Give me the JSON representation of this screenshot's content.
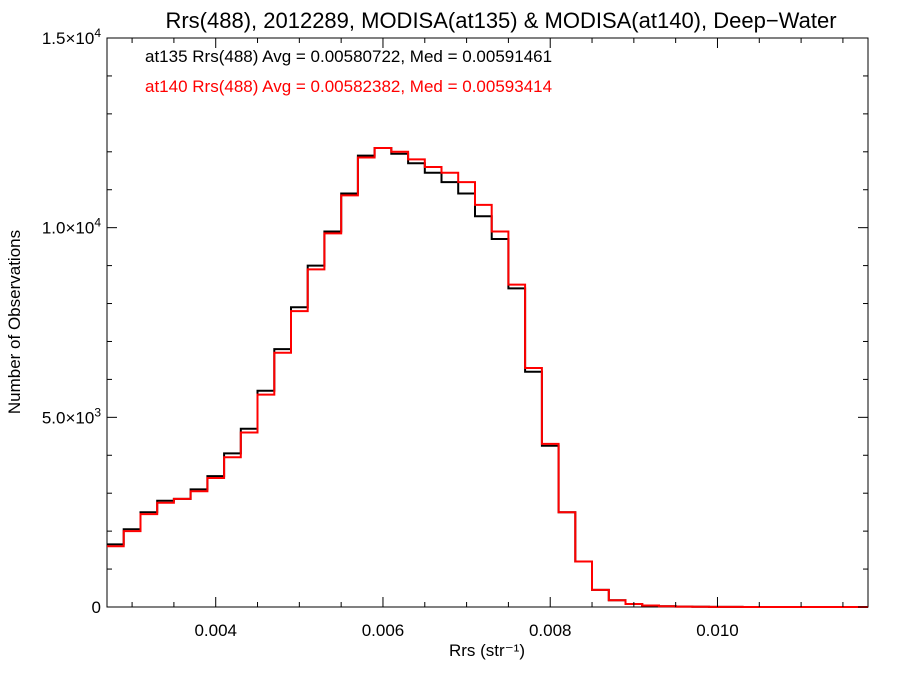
{
  "chart_data": {
    "type": "line",
    "title": "Rrs(488), 2012289, MODISA(at135) & MODISA(at140), Deep−Water",
    "xlabel": "Rrs (str⁻¹)",
    "ylabel": "Number of Observations",
    "xlim": [
      0.0027,
      0.0118
    ],
    "ylim": [
      0,
      15000
    ],
    "x_ticks": [
      0.004,
      0.006,
      0.008,
      0.01
    ],
    "x_tick_labels": [
      "0.004",
      "0.006",
      "0.008",
      "0.010"
    ],
    "y_ticks": [
      0,
      5000,
      10000,
      15000
    ],
    "y_tick_labels": [
      {
        "mantissa": "0",
        "exp": ""
      },
      {
        "mantissa": "5.0×10",
        "exp": "3"
      },
      {
        "mantissa": "1.0×10",
        "exp": "4"
      },
      {
        "mantissa": "1.5×10",
        "exp": "4"
      }
    ],
    "grid": false,
    "annotations": [
      {
        "text": "at135 Rrs(488) Avg = 0.00580722, Med = 0.00591461",
        "color": "#000000"
      },
      {
        "text": "at140 Rrs(488) Avg = 0.00582382, Med = 0.00593414",
        "color": "#ff0000"
      }
    ],
    "series": [
      {
        "color": "#000000",
        "step": true,
        "x": [
          0.0027,
          0.0029,
          0.0031,
          0.0033,
          0.0035,
          0.0037,
          0.0039,
          0.0041,
          0.0043,
          0.0045,
          0.0047,
          0.0049,
          0.0051,
          0.0053,
          0.0055,
          0.0057,
          0.0059,
          0.0061,
          0.0063,
          0.0065,
          0.0067,
          0.0069,
          0.0071,
          0.0073,
          0.0075,
          0.0077,
          0.0079,
          0.0081,
          0.0083,
          0.0085,
          0.0087,
          0.0089,
          0.0091,
          0.0093,
          0.0095,
          0.0097,
          0.0099,
          0.0101,
          0.0103,
          0.0118
        ],
        "y": [
          1650,
          2050,
          2500,
          2800,
          2850,
          3100,
          3450,
          4050,
          4700,
          5700,
          6800,
          7900,
          9000,
          9900,
          10900,
          11900,
          12100,
          11950,
          11700,
          11450,
          11200,
          10900,
          10300,
          9700,
          8400,
          6200,
          4250,
          2500,
          1200,
          450,
          180,
          80,
          40,
          20,
          10,
          5,
          3,
          2,
          1,
          0
        ]
      },
      {
        "color": "#ff0000",
        "step": true,
        "x": [
          0.0027,
          0.0029,
          0.0031,
          0.0033,
          0.0035,
          0.0037,
          0.0039,
          0.0041,
          0.0043,
          0.0045,
          0.0047,
          0.0049,
          0.0051,
          0.0053,
          0.0055,
          0.0057,
          0.0059,
          0.0061,
          0.0063,
          0.0065,
          0.0067,
          0.0069,
          0.0071,
          0.0073,
          0.0075,
          0.0077,
          0.0079,
          0.0081,
          0.0083,
          0.0085,
          0.0087,
          0.0089,
          0.0091,
          0.0093,
          0.0095,
          0.0097,
          0.0099,
          0.0101,
          0.0103,
          0.0118
        ],
        "y": [
          1600,
          2000,
          2450,
          2750,
          2850,
          3050,
          3400,
          3950,
          4600,
          5600,
          6700,
          7800,
          8900,
          9850,
          10850,
          11850,
          12100,
          12000,
          11800,
          11600,
          11450,
          11200,
          10600,
          9900,
          8500,
          6300,
          4300,
          2500,
          1200,
          450,
          180,
          80,
          40,
          20,
          10,
          5,
          3,
          2,
          1,
          0
        ]
      }
    ]
  }
}
